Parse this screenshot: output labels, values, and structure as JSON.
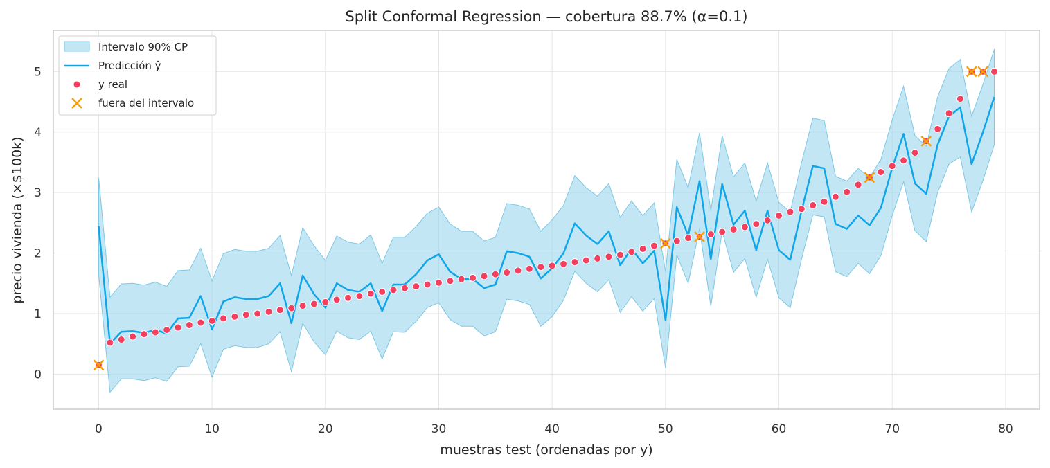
{
  "chart_data": {
    "type": "line",
    "title": "Split Conformal Regression — cobertura 88.7% (α=0.1)",
    "xlabel": "muestras test (ordenadas por y)",
    "ylabel": "precio vivienda (×$100k)",
    "xlim": [
      -4,
      83
    ],
    "ylim": [
      -0.58,
      5.68
    ],
    "xticks": [
      0,
      10,
      20,
      30,
      40,
      50,
      60,
      70,
      80
    ],
    "yticks": [
      0,
      1,
      2,
      3,
      4,
      5
    ],
    "grid": true,
    "legend_position": "top-left",
    "colors": {
      "interval_fill": "#87ceeb",
      "interval_edge": "#7ec8e3",
      "prediction": "#0ea5e9",
      "y_real": "#f43f5e",
      "outside": "#f59e0b"
    },
    "x": [
      0,
      1,
      2,
      3,
      4,
      5,
      6,
      7,
      8,
      9,
      10,
      11,
      12,
      13,
      14,
      15,
      16,
      17,
      18,
      19,
      20,
      21,
      22,
      23,
      24,
      25,
      26,
      27,
      28,
      29,
      30,
      31,
      32,
      33,
      34,
      35,
      36,
      37,
      38,
      39,
      40,
      41,
      42,
      43,
      44,
      45,
      46,
      47,
      48,
      49,
      50,
      51,
      52,
      53,
      54,
      55,
      56,
      57,
      58,
      59,
      60,
      61,
      62,
      63,
      64,
      65,
      66,
      67,
      68,
      69,
      70,
      71,
      72,
      73,
      74,
      75,
      76,
      77,
      78,
      79
    ],
    "series": [
      {
        "name": "Intervalo 90% CP",
        "kind": "band",
        "lower": [
          1.64,
          -0.3,
          -0.08,
          -0.08,
          -0.11,
          -0.06,
          -0.12,
          0.12,
          0.13,
          0.5,
          -0.05,
          0.41,
          0.47,
          0.44,
          0.44,
          0.5,
          0.7,
          0.04,
          0.84,
          0.53,
          0.32,
          0.71,
          0.6,
          0.57,
          0.71,
          0.25,
          0.7,
          0.69,
          0.87,
          1.1,
          1.18,
          0.9,
          0.79,
          0.79,
          0.63,
          0.7,
          1.24,
          1.21,
          1.15,
          0.79,
          0.95,
          1.22,
          1.7,
          1.5,
          1.36,
          1.56,
          1.02,
          1.28,
          1.04,
          1.25,
          0.1,
          1.97,
          1.5,
          2.4,
          1.12,
          2.36,
          1.68,
          1.91,
          1.27,
          1.9,
          1.26,
          1.1,
          1.9,
          2.63,
          2.6,
          1.69,
          1.61,
          1.83,
          1.66,
          1.96,
          2.62,
          3.18,
          2.37,
          2.19,
          3.0,
          3.47,
          3.59,
          2.68,
          3.2,
          3.79
        ],
        "upper": [
          3.24,
          1.27,
          1.49,
          1.5,
          1.47,
          1.52,
          1.45,
          1.71,
          1.72,
          2.08,
          1.54,
          1.99,
          2.06,
          2.03,
          2.03,
          2.08,
          2.29,
          1.63,
          2.42,
          2.12,
          1.88,
          2.28,
          2.18,
          2.15,
          2.3,
          1.83,
          2.26,
          2.26,
          2.44,
          2.66,
          2.76,
          2.48,
          2.36,
          2.36,
          2.2,
          2.26,
          2.82,
          2.79,
          2.73,
          2.36,
          2.55,
          2.79,
          3.28,
          3.08,
          2.94,
          3.15,
          2.59,
          2.86,
          2.62,
          2.83,
          1.69,
          3.55,
          3.08,
          3.99,
          2.7,
          3.94,
          3.26,
          3.49,
          2.86,
          3.49,
          2.84,
          2.68,
          3.5,
          4.23,
          4.19,
          3.27,
          3.19,
          3.4,
          3.25,
          3.55,
          4.2,
          4.76,
          3.94,
          3.77,
          4.58,
          5.05,
          5.2,
          4.26,
          4.79,
          5.37
        ]
      },
      {
        "name": "Predicción ŷ",
        "kind": "line",
        "values": [
          2.44,
          0.5,
          0.7,
          0.71,
          0.68,
          0.73,
          0.67,
          0.92,
          0.93,
          1.29,
          0.74,
          1.2,
          1.27,
          1.24,
          1.24,
          1.29,
          1.5,
          0.84,
          1.63,
          1.32,
          1.1,
          1.5,
          1.39,
          1.36,
          1.5,
          1.04,
          1.48,
          1.48,
          1.65,
          1.88,
          1.98,
          1.69,
          1.57,
          1.57,
          1.42,
          1.48,
          2.03,
          2.0,
          1.94,
          1.58,
          1.75,
          2.0,
          2.49,
          2.29,
          2.15,
          2.36,
          1.8,
          2.07,
          1.83,
          2.04,
          0.89,
          2.76,
          2.29,
          3.19,
          1.9,
          3.14,
          2.47,
          2.7,
          2.05,
          2.7,
          2.05,
          1.89,
          2.7,
          3.44,
          3.4,
          2.48,
          2.4,
          2.62,
          2.46,
          2.75,
          3.41,
          3.97,
          3.15,
          2.98,
          3.79,
          4.26,
          4.41,
          3.47,
          4.0,
          4.58
        ]
      },
      {
        "name": "y real",
        "kind": "scatter",
        "values": [
          0.15,
          0.52,
          0.57,
          0.62,
          0.66,
          0.69,
          0.73,
          0.77,
          0.81,
          0.85,
          0.88,
          0.92,
          0.95,
          0.98,
          1.0,
          1.03,
          1.06,
          1.09,
          1.13,
          1.16,
          1.19,
          1.23,
          1.26,
          1.29,
          1.33,
          1.36,
          1.39,
          1.42,
          1.45,
          1.48,
          1.51,
          1.54,
          1.57,
          1.59,
          1.62,
          1.65,
          1.68,
          1.71,
          1.74,
          1.77,
          1.79,
          1.82,
          1.85,
          1.88,
          1.91,
          1.94,
          1.97,
          2.02,
          2.07,
          2.12,
          2.16,
          2.2,
          2.25,
          2.27,
          2.31,
          2.35,
          2.39,
          2.43,
          2.48,
          2.54,
          2.62,
          2.68,
          2.73,
          2.79,
          2.85,
          2.93,
          3.01,
          3.13,
          3.25,
          3.34,
          3.44,
          3.53,
          3.66,
          3.85,
          4.05,
          4.31,
          4.55,
          5.0,
          5.0,
          5.0
        ]
      },
      {
        "name": "fuera del intervalo",
        "kind": "marker",
        "x": [
          0,
          50,
          53,
          68,
          73,
          77,
          78
        ],
        "values": [
          0.15,
          2.16,
          2.27,
          3.25,
          3.85,
          5.0,
          5.0
        ]
      }
    ]
  }
}
